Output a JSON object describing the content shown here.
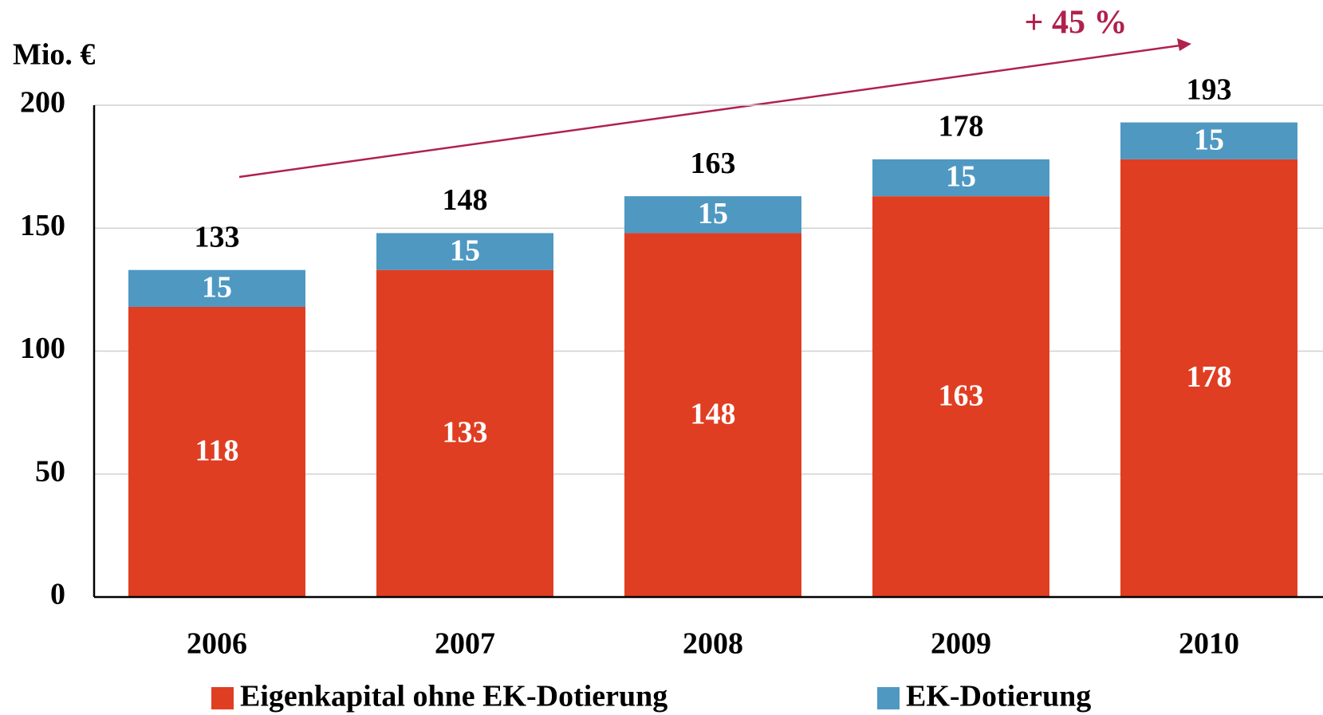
{
  "chart_data": {
    "type": "stacked_bar",
    "y_axis_label": "Mio. €",
    "annotation": "+ 45 %",
    "categories": [
      "2006",
      "2007",
      "2008",
      "2009",
      "2010"
    ],
    "series": [
      {
        "name": "Eigenkapital ohne EK-Dotierung",
        "color": "#e03e22",
        "values": [
          118,
          133,
          148,
          163,
          178
        ]
      },
      {
        "name": "EK-Dotierung",
        "color": "#4f98c2",
        "values": [
          15,
          15,
          15,
          15,
          15
        ]
      }
    ],
    "total_labels": [
      133,
      148,
      163,
      178,
      193
    ],
    "ylim": [
      0,
      200
    ],
    "yticks": [
      0,
      50,
      100,
      150,
      200
    ],
    "grid": true
  }
}
